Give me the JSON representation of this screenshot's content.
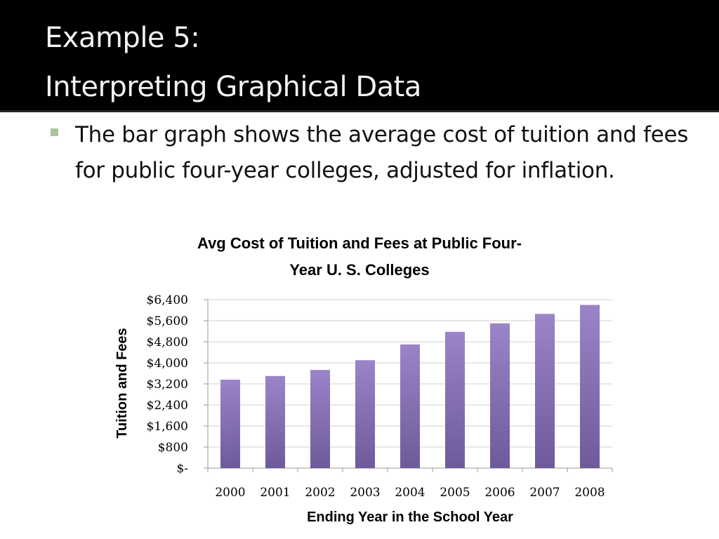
{
  "slide": {
    "title_line1": "Example 5:",
    "title_line2": "Interpreting Graphical Data",
    "bullet": "The bar graph shows the average cost of tuition and fees for public four-year colleges, adjusted for inflation."
  },
  "chart_data": {
    "type": "bar",
    "title_line1": "Avg Cost of Tuition and Fees at Public Four-",
    "title_line2": "Year U. S. Colleges",
    "xlabel": "Ending Year in the School Year",
    "ylabel": "Tuition and Fees",
    "categories": [
      "2000",
      "2001",
      "2002",
      "2003",
      "2004",
      "2005",
      "2006",
      "2007",
      "2008"
    ],
    "values": [
      3360,
      3500,
      3730,
      4100,
      4700,
      5180,
      5500,
      5860,
      6200
    ],
    "ylim": [
      0,
      6400
    ],
    "yticks": [
      0,
      800,
      1600,
      2400,
      3200,
      4000,
      4800,
      5600,
      6400
    ],
    "ytick_labels": [
      "$-",
      "$800",
      "$1,600",
      "$2,400",
      "$3,200",
      "$4,000",
      "$4,800",
      "$5,600",
      "$6,400"
    ],
    "grid": true,
    "legend": "none",
    "bar_color_top": "#9b84c8",
    "bar_color_bottom": "#6e5a9a"
  }
}
